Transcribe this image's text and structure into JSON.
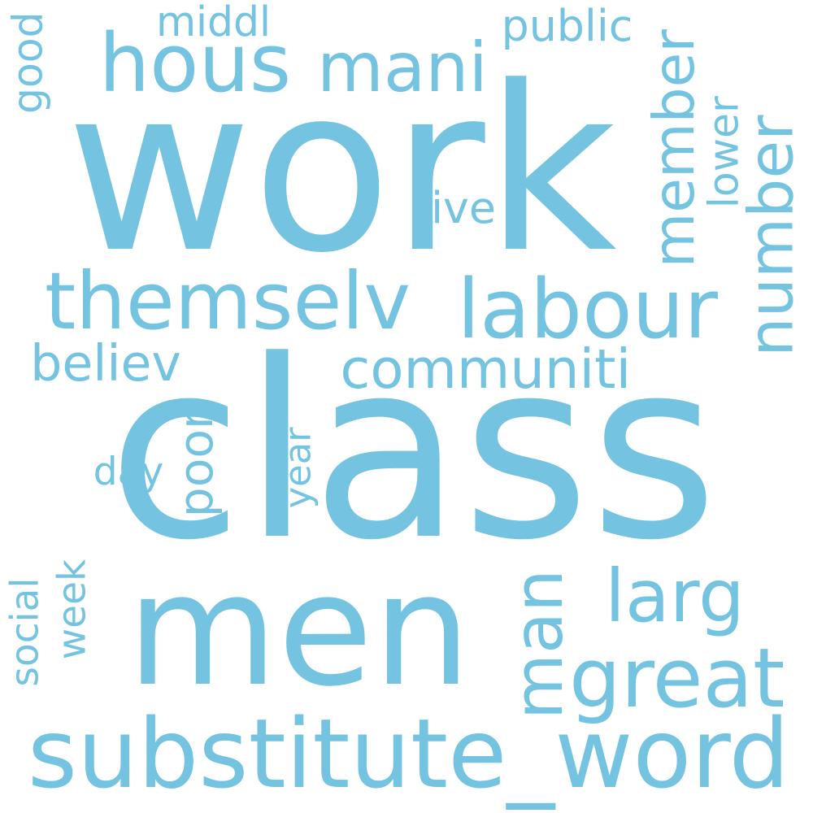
{
  "word_color": "#73c3e1",
  "background": "#ffffff",
  "words": [
    {
      "text": "work"
    },
    {
      "text": "class"
    },
    {
      "text": "men"
    },
    {
      "text": "substitute_word"
    },
    {
      "text": "hous"
    },
    {
      "text": "mani"
    },
    {
      "text": "themselv"
    },
    {
      "text": "labour"
    },
    {
      "text": "number"
    },
    {
      "text": "member"
    },
    {
      "text": "communiti"
    },
    {
      "text": "larg"
    },
    {
      "text": "great"
    },
    {
      "text": "man"
    },
    {
      "text": "believ"
    },
    {
      "text": "middl"
    },
    {
      "text": "public"
    },
    {
      "text": "good"
    },
    {
      "text": "lower"
    },
    {
      "text": "live"
    },
    {
      "text": "day"
    },
    {
      "text": "poor"
    },
    {
      "text": "year"
    },
    {
      "text": "social"
    },
    {
      "text": "week"
    }
  ]
}
